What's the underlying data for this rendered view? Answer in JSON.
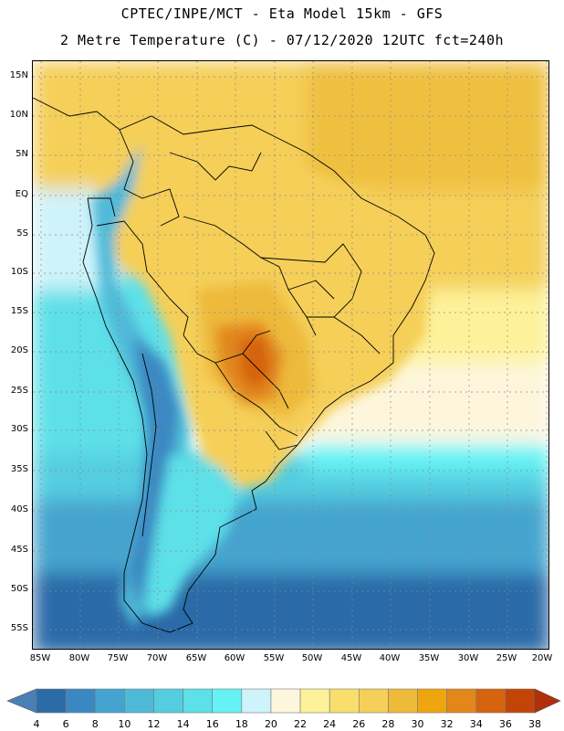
{
  "title": {
    "line1": "CPTEC/INPE/MCT -  Eta Model 15km - GFS",
    "line2": "2 Metre Temperature (C) - 07/12/2020 12UTC fct=240h"
  },
  "map": {
    "lat_labels": [
      "15N",
      "10N",
      "5N",
      "EQ",
      "5S",
      "10S",
      "15S",
      "20S",
      "25S",
      "30S",
      "35S",
      "40S",
      "45S",
      "50S",
      "55S"
    ],
    "lon_labels": [
      "85W",
      "80W",
      "75W",
      "70W",
      "65W",
      "60W",
      "55W",
      "50W",
      "45W",
      "40W",
      "35W",
      "30W",
      "25W",
      "20W"
    ]
  },
  "colorbar": {
    "labels": [
      "4",
      "6",
      "8",
      "10",
      "12",
      "14",
      "16",
      "18",
      "20",
      "22",
      "24",
      "26",
      "28",
      "30",
      "32",
      "34",
      "36",
      "38"
    ],
    "colors": [
      "#4a7fb5",
      "#2c6aa8",
      "#3a88c2",
      "#44a4cf",
      "#4fbad8",
      "#55cde0",
      "#5de0e8",
      "#66f2f5",
      "#cff3fb",
      "#fdf6dc",
      "#fdf29a",
      "#f9de6e",
      "#f5cf58",
      "#edba3a",
      "#efa50f",
      "#e3871b",
      "#d6630e",
      "#c24407",
      "#b0300a"
    ]
  }
}
